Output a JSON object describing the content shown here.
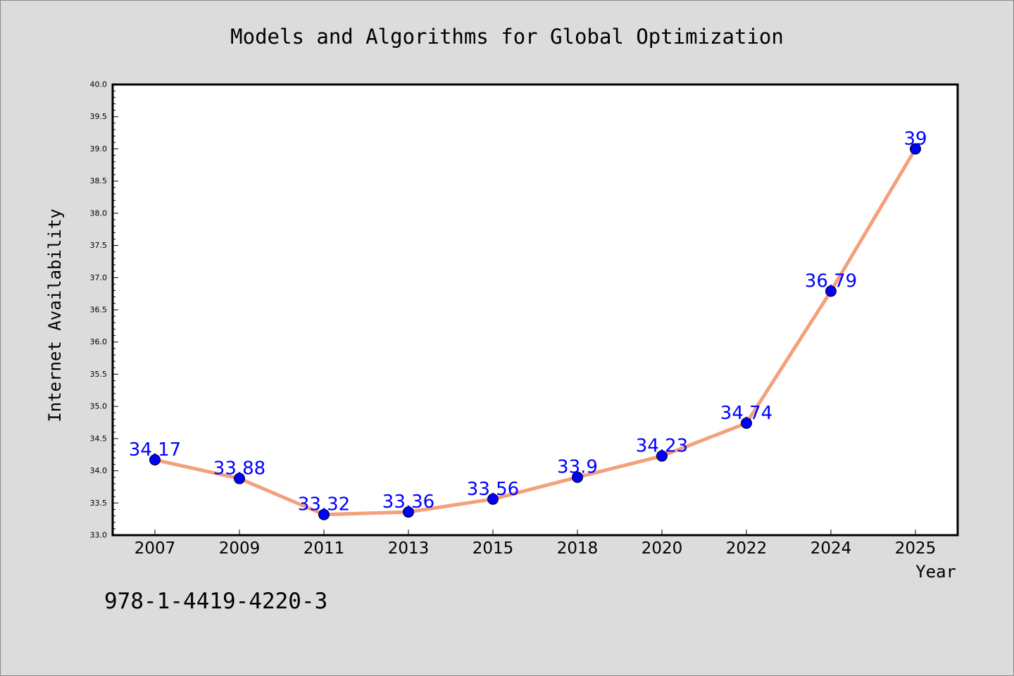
{
  "chart_data": {
    "type": "line",
    "title": "Models and Algorithms for Global Optimization",
    "xlabel": "Year",
    "ylabel": "Internet Availability",
    "categories": [
      "2007",
      "2009",
      "2011",
      "2013",
      "2015",
      "2018",
      "2020",
      "2022",
      "2024",
      "2025"
    ],
    "series": [
      {
        "values": [
          34.17,
          33.88,
          33.32,
          33.36,
          33.56,
          33.9,
          34.23,
          34.74,
          36.79,
          39
        ],
        "data_labels": [
          "34.17",
          "33.88",
          "33.32",
          "33.36",
          "33.56",
          "33.9",
          "34.23",
          "34.74",
          "36.79",
          "39"
        ],
        "line_color": "#f4a07c",
        "marker_color": "#0000ff"
      }
    ],
    "ylim": [
      33.0,
      40.0
    ],
    "ytick_labels": [
      "33.0",
      "33.5",
      "34.0",
      "34.5",
      "35.0",
      "35.5",
      "36.0",
      "36.5",
      "37.0",
      "37.5",
      "38.0",
      "38.5",
      "39.0",
      "39.5",
      "40.0"
    ],
    "grid": false,
    "legend": "none"
  },
  "annotation": "978-1-4419-4220-3",
  "colors": {
    "background": "#dcdcdc",
    "plot_area": "#ffffff",
    "line": "#f4a07c",
    "marker": "#0000ff",
    "data_label": "#0000ff"
  }
}
